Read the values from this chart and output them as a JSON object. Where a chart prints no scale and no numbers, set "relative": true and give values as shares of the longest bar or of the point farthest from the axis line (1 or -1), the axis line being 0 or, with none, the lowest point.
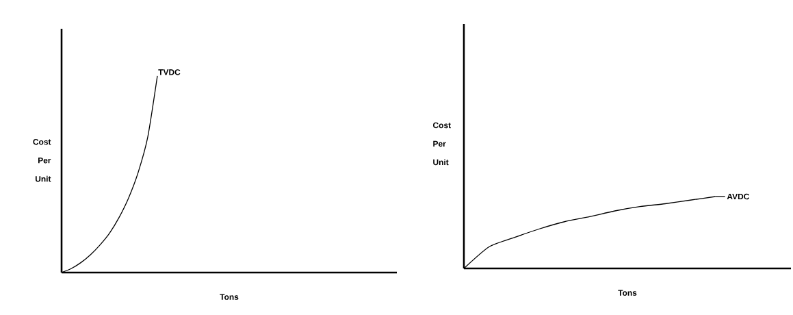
{
  "chart_data": [
    {
      "type": "line",
      "relative": true,
      "xlabel": "Tons",
      "ylabel": "Cost Per Unit",
      "color": "#000000",
      "categories": [
        null,
        null,
        null,
        null,
        null,
        null,
        null,
        null,
        null,
        null,
        null,
        null,
        null,
        null,
        null,
        null,
        null,
        null,
        null,
        null,
        null,
        null,
        null,
        null,
        null,
        null,
        null,
        null,
        null,
        null,
        null,
        null,
        null,
        null,
        null,
        null
      ],
      "values": [
        0,
        0.02,
        0.05,
        0.09,
        0.14,
        0.2,
        0.28,
        0.38,
        0.51,
        0.69,
        1,
        null,
        null,
        null,
        null,
        null,
        null,
        null,
        null,
        null,
        null,
        null,
        null,
        null,
        null,
        null,
        null,
        null,
        null,
        null,
        null,
        null,
        null,
        null,
        null,
        null
      ],
      "annotations": [
        "TVDC"
      ]
    },
    {
      "type": "line",
      "relative": true,
      "xlabel": "Tons",
      "ylabel": "Cost Per Unit",
      "color": "#000000",
      "categories": [
        null,
        null,
        null,
        null,
        null,
        null,
        null,
        null,
        null,
        null,
        null,
        null,
        null,
        null
      ],
      "values": [
        0,
        0.3,
        0.43,
        0.55,
        0.65,
        0.72,
        0.8,
        0.86,
        0.9,
        0.95,
        1,
        null,
        null,
        null
      ],
      "annotations": [
        "AVDC"
      ]
    }
  ]
}
